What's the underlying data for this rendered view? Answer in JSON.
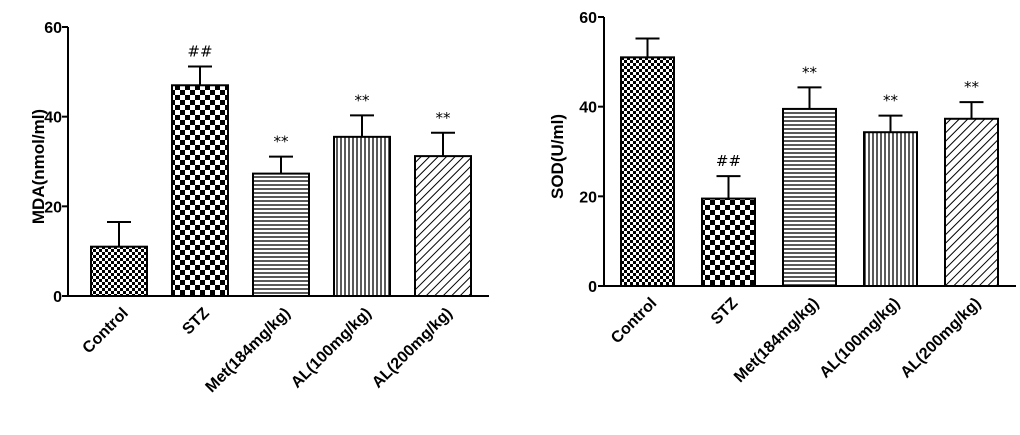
{
  "chart_data": [
    {
      "type": "bar",
      "ylabel": "MDA(nmol/ml)",
      "xlabel": "",
      "title": "",
      "ylim": [
        0,
        60
      ],
      "yticks": [
        0,
        20,
        40,
        60
      ],
      "categories": [
        "Control",
        "STZ",
        "Met(184mg/kg)",
        "AL(100mg/kg)",
        "AL(200mg/kg)"
      ],
      "values": [
        11,
        47,
        27.3,
        35.5,
        31.2
      ],
      "errors": [
        5.5,
        4.2,
        3.8,
        4.8,
        5.2
      ],
      "significance": [
        "",
        "##",
        "**",
        "**",
        "**"
      ],
      "patterns": [
        "checker-small",
        "checker-large",
        "horizontal",
        "vertical",
        "diagonal"
      ]
    },
    {
      "type": "bar",
      "ylabel": "SOD(U/ml)",
      "xlabel": "",
      "title": "",
      "ylim": [
        0,
        60
      ],
      "yticks": [
        0,
        20,
        40,
        60
      ],
      "categories": [
        "Control",
        "STZ",
        "Met(184mg/kg)",
        "AL(100mg/kg)",
        "AL(200mg/kg)"
      ],
      "values": [
        51,
        19.5,
        39.5,
        34.3,
        37.3
      ],
      "errors": [
        4.2,
        5,
        4.8,
        3.7,
        3.7
      ],
      "significance": [
        "",
        "##",
        "**",
        "**",
        "**"
      ],
      "patterns": [
        "checker-small",
        "checker-large",
        "horizontal",
        "vertical",
        "diagonal"
      ]
    }
  ]
}
